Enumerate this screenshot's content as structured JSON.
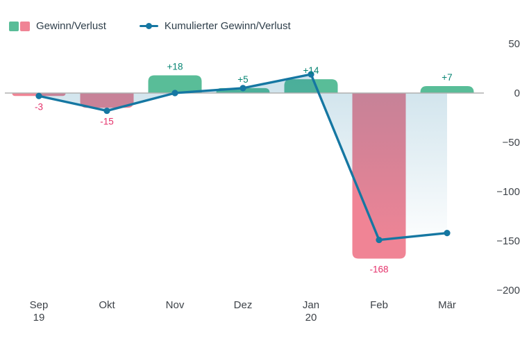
{
  "legend": {
    "bars": {
      "label": "Gewinn/Verlust",
      "positive_color": "#59bd98",
      "negative_color": "#f08495"
    },
    "line": {
      "label": "Kumulierter Gewinn/Verlust",
      "color": "#1577a2"
    }
  },
  "chart_data": {
    "type": "combo",
    "categories": [
      "Sep 19",
      "Okt",
      "Nov",
      "Dez",
      "Jan 20",
      "Feb",
      "Mär"
    ],
    "category_lines": [
      [
        "Sep",
        "19"
      ],
      [
        "Okt"
      ],
      [
        "Nov"
      ],
      [
        "Dez"
      ],
      [
        "Jan",
        "20"
      ],
      [
        "Feb"
      ],
      [
        "Mär"
      ]
    ],
    "series": [
      {
        "name": "Gewinn/Verlust",
        "type": "bar",
        "values": [
          -3,
          -15,
          18,
          5,
          14,
          -168,
          7
        ],
        "data_labels": [
          "-3",
          "-15",
          "+18",
          "+5",
          "+14",
          "-168",
          "+7"
        ],
        "positive_color": "#59bd98",
        "negative_color": "#f08495",
        "positive_label_color": "#078573",
        "negative_label_color": "#e5326b"
      },
      {
        "name": "Kumulierter Gewinn/Verlust",
        "type": "line",
        "values": [
          -3,
          -18,
          0,
          5,
          19,
          -149,
          -142
        ],
        "color": "#1577a2",
        "marker": "circle",
        "area_gradient": true
      }
    ],
    "y_axis": {
      "side": "right",
      "tick_labels": [
        "50",
        "0",
        "−50",
        "−100",
        "−150",
        "−200"
      ],
      "tick_values": [
        50,
        0,
        -50,
        -100,
        -150,
        -200
      ],
      "min": -200,
      "max": 50
    },
    "grid": false,
    "legend_position": "top-left",
    "axis_line_color": "#b0b0b0",
    "text_color": "#3d4248"
  }
}
